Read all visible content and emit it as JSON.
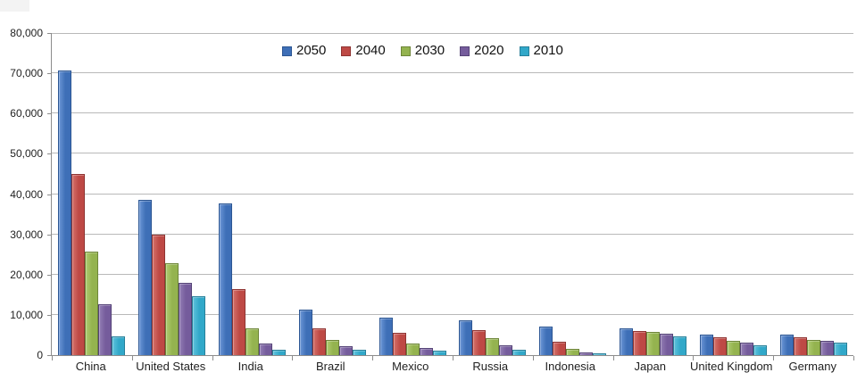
{
  "chart_data": {
    "type": "bar",
    "title": "",
    "xlabel": "",
    "ylabel": "",
    "categories": [
      "China",
      "United States",
      "India",
      "Brazil",
      "Mexico",
      "Russia",
      "Indonesia",
      "Japan",
      "United Kingdom",
      "Germany"
    ],
    "series": [
      {
        "name": "2050",
        "color": "#3E6FB7",
        "color_light": "#6B96D6",
        "border_color": "#2C5693",
        "values": [
          70710,
          38514,
          37668,
          11366,
          9340,
          8580,
          7010,
          6677,
          5133,
          5024
        ]
      },
      {
        "name": "2040",
        "color": "#BE4945",
        "color_light": "#D4716A",
        "border_color": "#8F3432",
        "values": [
          45022,
          29823,
          16510,
          6631,
          5471,
          6320,
          3286,
          6039,
          4344,
          4388
        ]
      },
      {
        "name": "2030",
        "color": "#94B34F",
        "color_light": "#AECB70",
        "border_color": "#6E8639",
        "values": [
          25610,
          22817,
          6683,
          3720,
          2830,
          4265,
          1479,
          5810,
          3595,
          3761
        ]
      },
      {
        "name": "2020",
        "color": "#755C9C",
        "color_light": "#937EB4",
        "border_color": "#554377",
        "values": [
          12630,
          17978,
          2848,
          2194,
          1742,
          2554,
          752,
          5224,
          3101,
          3519
        ]
      },
      {
        "name": "2010",
        "color": "#31A8C9",
        "color_light": "#5FC2DC",
        "border_color": "#27809A",
        "values": [
          4667,
          14535,
          1256,
          1346,
          1009,
          1371,
          419,
          4604,
          2546,
          3083
        ]
      }
    ],
    "ylim": [
      0,
      80000
    ],
    "ytick_interval": 10000,
    "ytick_labels": [
      "0",
      "10,000",
      "20,000",
      "30,000",
      "40,000",
      "50,000",
      "60,000",
      "70,000",
      "80,000"
    ],
    "grid": true,
    "legend_position": "top-center"
  },
  "colors": {
    "background": "#FFFFFF",
    "gridline": "#B9B9B9",
    "axis": "#8C8C8C",
    "text": "#1F1F1F"
  }
}
